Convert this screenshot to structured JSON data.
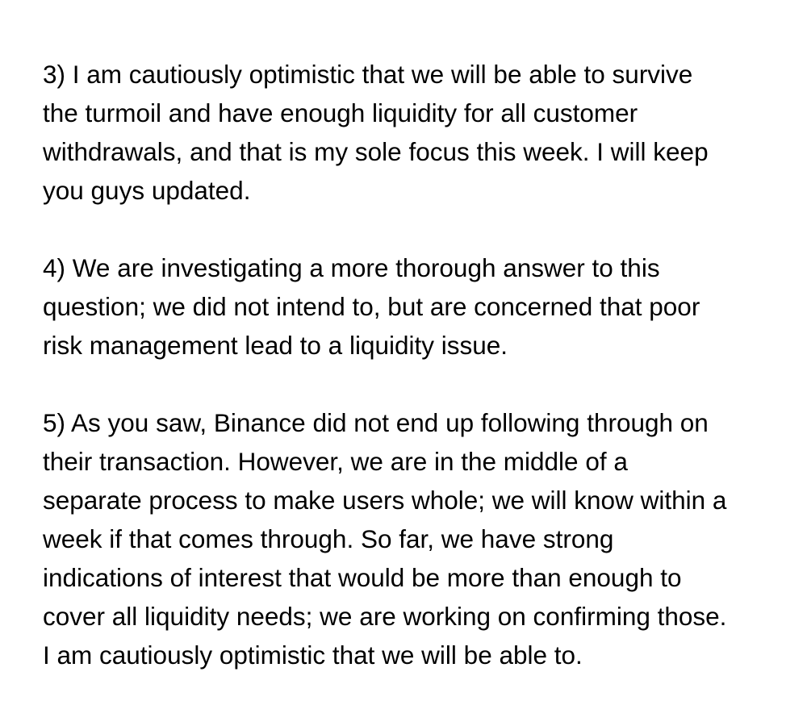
{
  "paragraphs": [
    {
      "lines": [
        "3) I am cautiously optimistic that we will be able to survive",
        "the turmoil and have enough liquidity for all customer",
        "withdrawals, and that is my sole focus this week. I will keep",
        "you guys updated."
      ]
    },
    {
      "lines": [
        "4) We are investigating a more thorough answer to this",
        "question; we did not intend to, but are concerned that poor",
        "risk management lead to a liquidity issue."
      ]
    },
    {
      "lines": [
        "5) As you saw, Binance did not end up following through on",
        "their transaction. However, we are in the middle of a",
        "separate process to make users whole; we will know within a",
        "week if that comes through. So far, we have strong",
        "indications of interest that would be more than enough to",
        "cover all liquidity needs; we are working on confirming those.",
        "I am cautiously optimistic that we will be able to."
      ]
    }
  ]
}
